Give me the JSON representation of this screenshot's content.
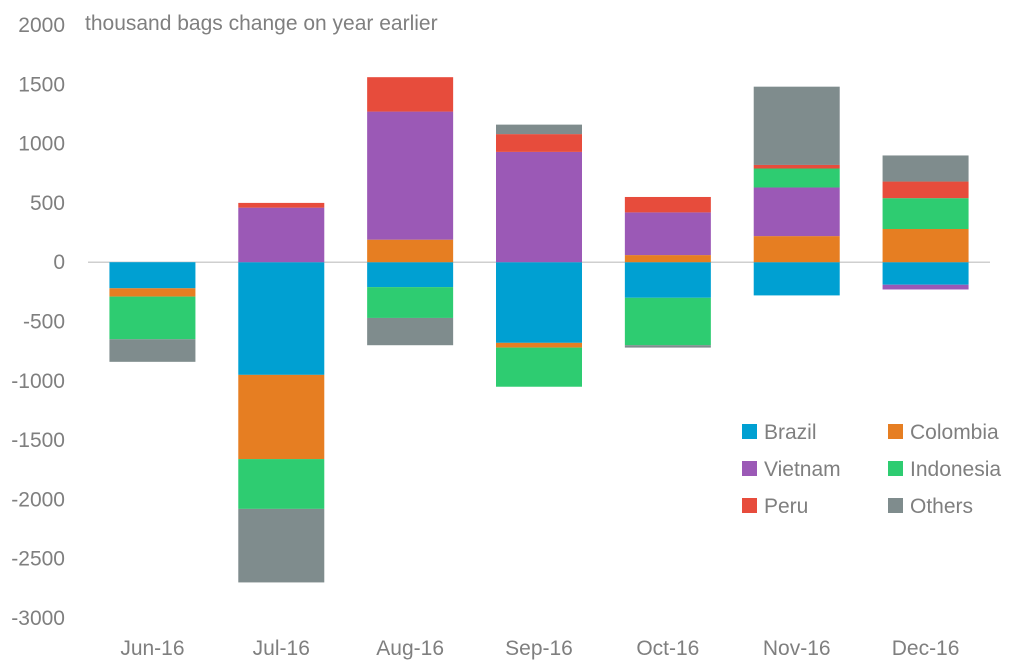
{
  "chart_data": {
    "type": "bar",
    "stacked": true,
    "title": "",
    "ylabel": "thousand bags change on year earlier",
    "xlabel": "",
    "ylim": [
      -3000,
      2000
    ],
    "yticks": [
      2000,
      1500,
      1000,
      500,
      0,
      -500,
      -1000,
      -1500,
      -2000,
      -2500,
      -3000
    ],
    "categories": [
      "Jun-16",
      "Jul-16",
      "Aug-16",
      "Sep-16",
      "Oct-16",
      "Nov-16",
      "Dec-16"
    ],
    "series": [
      {
        "name": "Brazil",
        "color": "#00a0d2",
        "values": [
          -220,
          -950,
          -210,
          -680,
          -300,
          -280,
          -190
        ]
      },
      {
        "name": "Colombia",
        "color": "#e67e22",
        "values": [
          -70,
          -710,
          190,
          -40,
          60,
          220,
          280
        ]
      },
      {
        "name": "Vietnam",
        "color": "#9b59b6",
        "values": [
          0,
          460,
          1080,
          930,
          360,
          410,
          -40
        ]
      },
      {
        "name": "Indonesia",
        "color": "#2ecc71",
        "values": [
          -360,
          -420,
          -260,
          -330,
          -400,
          160,
          260
        ]
      },
      {
        "name": "Peru",
        "color": "#e74c3c",
        "values": [
          0,
          40,
          290,
          150,
          130,
          30,
          140
        ]
      },
      {
        "name": "Others",
        "color": "#7f8c8d",
        "values": [
          -190,
          -620,
          -230,
          80,
          -20,
          660,
          220
        ]
      }
    ],
    "legend": {
      "position": "bottom-right",
      "columns": 2
    }
  }
}
